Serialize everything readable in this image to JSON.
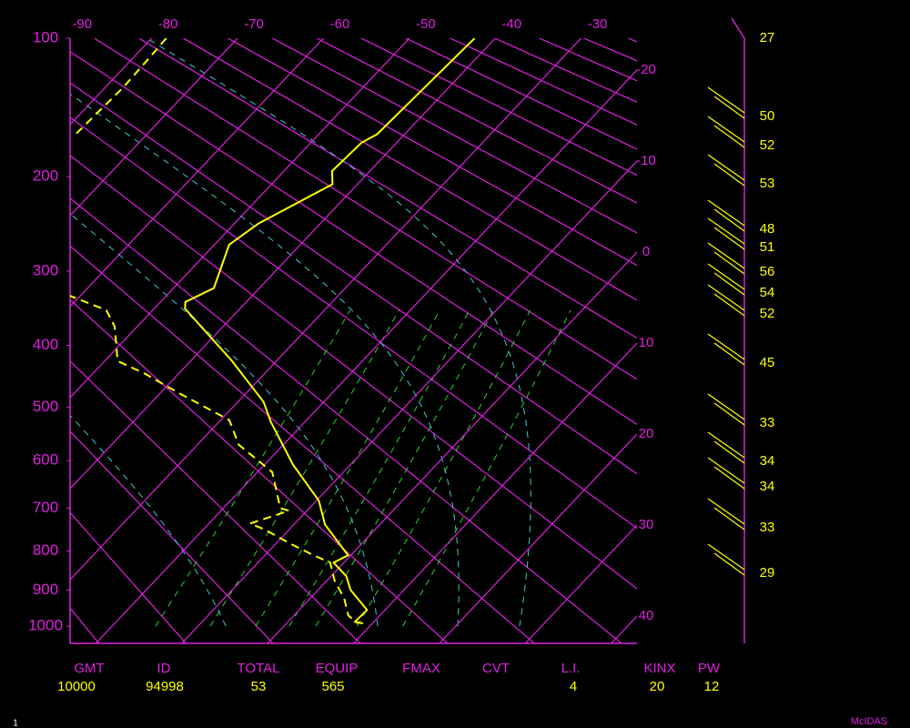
{
  "chart_data": {
    "type": "skew-t",
    "ylim": [
      100,
      1050
    ],
    "yticks": [
      100,
      200,
      300,
      400,
      500,
      600,
      700,
      800,
      900,
      1000
    ],
    "xlim": [
      -23,
      43
    ],
    "xticks": [
      -90,
      -80,
      -70,
      -60,
      -50,
      -40,
      -30,
      -20,
      -10,
      0,
      10,
      20,
      30,
      40
    ],
    "log_scale": false,
    "grid": true,
    "series": [
      {
        "color": "#ffff00",
        "line_style": "solid",
        "pressure": [
          100,
          164,
          171,
          195,
          207,
          246,
          269,
          321,
          339,
          348,
          423,
          491,
          526,
          608,
          684,
          737,
          811,
          829,
          864,
          900,
          954,
          987,
          992
        ],
        "values": [
          -42.4,
          -43.2,
          -44.1,
          -44.4,
          -42.9,
          -47.2,
          -48.3,
          -45.3,
          -47.1,
          -46.4,
          -35.3,
          -27.0,
          -24.0,
          -16.7,
          -9.7,
          -6.4,
          -0.3,
          -1.2,
          1.8,
          3.8,
          7.9,
          7.8,
          8.9
        ]
      },
      {
        "color": "#ffff00",
        "line_style": "dashed",
        "pressure": [
          100,
          112,
          130,
          164,
          null,
          330,
          350,
          373,
          424,
          444,
          474,
          523,
          569,
          623,
          700,
          706,
          735,
          748,
          784,
          811,
          829,
          875,
          923,
          969,
          992
        ],
        "values": [
          -78.3,
          -78.1,
          -77.9,
          -78.3,
          null,
          -61.5,
          -55.4,
          -52.6,
          -48.5,
          -43.9,
          -38.2,
          -29.0,
          -25.2,
          -18.3,
          -13.4,
          -12.1,
          -15.2,
          -13.0,
          -8.1,
          -4.3,
          -1.6,
          0.9,
          4.0,
          6.3,
          8.3
        ]
      }
    ]
  },
  "wind_labels": [
    27,
    50,
    52,
    53,
    48,
    51,
    56,
    54,
    52,
    45,
    33,
    34,
    34,
    33,
    29
  ],
  "footer": {
    "columns": [
      {
        "header": "GMT",
        "value": 10000
      },
      {
        "header": "ID",
        "value": 94998
      },
      {
        "header": "TOTAL",
        "value": 53
      },
      {
        "header": "EQUIP",
        "value": 565
      },
      {
        "header": "FMAX"
      },
      {
        "header": "CVT"
      },
      {
        "header": "L.I.",
        "value": 4
      },
      {
        "header": "KINX",
        "value": 20
      },
      {
        "header": "PW",
        "value": 12
      }
    ]
  },
  "brand": "McIDAS",
  "frame_number": "1"
}
